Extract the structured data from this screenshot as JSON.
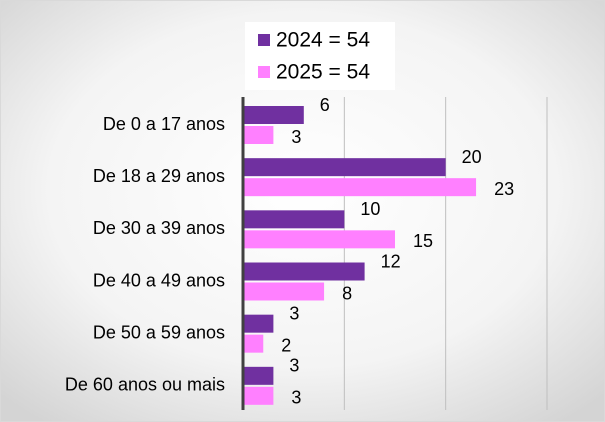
{
  "chart_data": {
    "type": "hbar",
    "categories": [
      "De 0 a 17 anos",
      "De 18 a 29 anos",
      "De 30 a 39 anos",
      "De 40 a 49 anos",
      "De 50 a 59 anos",
      "De 60 anos ou mais"
    ],
    "series": [
      {
        "name": "2024 = 54",
        "color": "#7030a0",
        "values": [
          6,
          20,
          10,
          12,
          3,
          3
        ]
      },
      {
        "name": "2025 = 54",
        "color": "#ff80ff",
        "values": [
          3,
          23,
          15,
          8,
          2,
          3
        ]
      }
    ],
    "xlim": [
      0,
      30
    ],
    "xticks": [
      0,
      10,
      20,
      30
    ],
    "grid": true,
    "legend": "top"
  }
}
